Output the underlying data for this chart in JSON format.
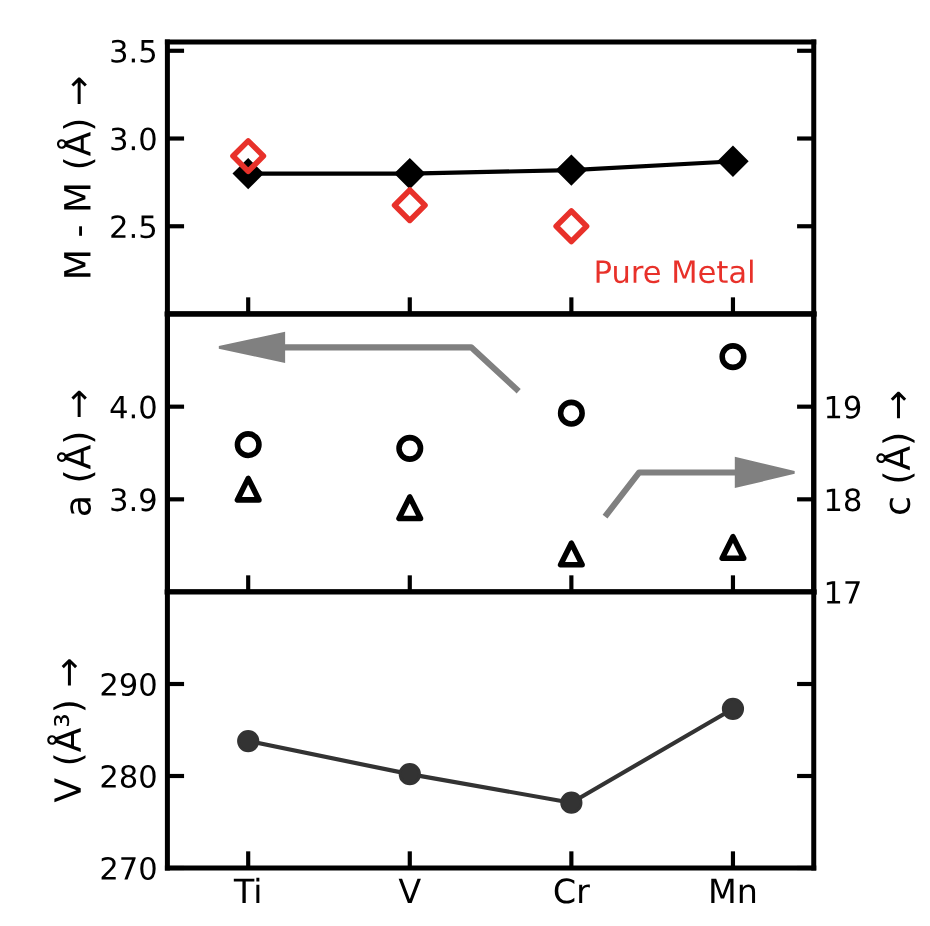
{
  "chart_data": [
    {
      "type": "line",
      "ylabel": "M - M (Å) →",
      "categories": [
        null,
        null,
        null,
        null
      ],
      "ylim": [
        2.0,
        3.55
      ],
      "yticks": [
        2.5,
        {
          "value": 3.0,
          "label": "3.0"
        },
        3.5
      ],
      "tick_labels": "y",
      "grid": false,
      "legend": false,
      "series": [
        {
          "color": "#000000",
          "marker": "diamond",
          "values": [
            2.8,
            2.8,
            2.82,
            2.87
          ]
        },
        {
          "type": "scatter",
          "name": "Pure Metal",
          "color": "#e8312a",
          "marker": "diamond",
          "values": [
            2.9,
            2.62,
            2.5,
            null
          ]
        }
      ]
    },
    {
      "type": "scatter",
      "ylabel": "a (Å) →",
      "y2label": "c (Å) →",
      "categories": [
        null,
        null,
        null,
        null
      ],
      "ylim": [
        3.8,
        4.1
      ],
      "yticks": [
        3.9,
        {
          "value": 4.0,
          "label": "4.0"
        }
      ],
      "y2lim": [
        17,
        20
      ],
      "y2ticks": [
        17,
        18,
        19
      ],
      "tick_labels": "y",
      "grid": false,
      "legend": false,
      "series": [
        {
          "color": "#000000",
          "marker": "circle",
          "axis": "y",
          "values": [
            3.959,
            3.955,
            3.993,
            4.054
          ]
        },
        {
          "color": "#000000",
          "marker": "triangle",
          "axis": "y2",
          "values": [
            18.11,
            17.91,
            17.41,
            17.48
          ]
        }
      ]
    },
    {
      "type": "line",
      "ylabel": "V (Å³) →",
      "categories": [
        "Ti",
        "V",
        "Cr",
        "Mn"
      ],
      "ylim": [
        270,
        300
      ],
      "yticks": [
        270,
        280,
        290
      ],
      "grid": false,
      "legend": false,
      "series": [
        {
          "color": "#333333",
          "marker": "circle",
          "values": [
            283.8,
            280.2,
            277.1,
            287.3
          ]
        }
      ]
    }
  ]
}
